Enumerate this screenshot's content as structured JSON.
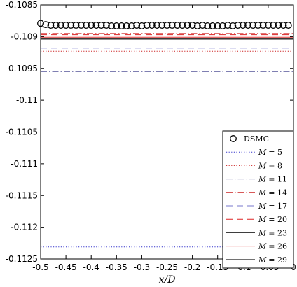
{
  "chart_data": {
    "type": "line",
    "xlabel": "x/D",
    "ylabel": "",
    "xlim": [
      -0.5,
      0
    ],
    "ylim": [
      -0.1125,
      -0.1085
    ],
    "x_ticks": [
      "-0.5",
      "-0.45",
      "-0.4",
      "-0.35",
      "-0.3",
      "-0.25",
      "-0.2",
      "-0.15",
      "-0.1",
      "-0.05",
      "0"
    ],
    "y_ticks": [
      "-0.1085",
      "-0.109",
      "-0.1095",
      "-0.11",
      "-0.1105",
      "-0.111",
      "-0.1115",
      "-0.112",
      "-0.1125"
    ],
    "grid": false,
    "legend_position": "bottom-right",
    "series": [
      {
        "name": "DSMC",
        "style": "markers",
        "marker": "circle-open",
        "color": "#000000",
        "x": [
          -0.5,
          -0.49,
          -0.48,
          -0.47,
          -0.46,
          -0.45,
          -0.44,
          -0.43,
          -0.42,
          -0.41,
          -0.4,
          -0.39,
          -0.38,
          -0.37,
          -0.36,
          -0.35,
          -0.34,
          -0.33,
          -0.32,
          -0.31,
          -0.3,
          -0.29,
          -0.28,
          -0.27,
          -0.26,
          -0.25,
          -0.24,
          -0.23,
          -0.22,
          -0.21,
          -0.2,
          -0.19,
          -0.18,
          -0.17,
          -0.16,
          -0.15,
          -0.14,
          -0.13,
          -0.12,
          -0.11,
          -0.1,
          -0.09,
          -0.08,
          -0.07,
          -0.06,
          -0.05,
          -0.04,
          -0.03,
          -0.02,
          -0.01
        ],
        "y": [
          -0.10879,
          -0.10881,
          -0.10882,
          -0.10882,
          -0.10882,
          -0.10882,
          -0.10882,
          -0.10882,
          -0.10882,
          -0.10882,
          -0.10882,
          -0.10882,
          -0.10882,
          -0.10882,
          -0.10883,
          -0.10883,
          -0.10883,
          -0.10883,
          -0.10883,
          -0.10882,
          -0.10883,
          -0.10882,
          -0.10882,
          -0.10882,
          -0.10882,
          -0.10882,
          -0.10882,
          -0.10882,
          -0.10882,
          -0.10882,
          -0.10882,
          -0.10883,
          -0.10882,
          -0.10883,
          -0.10883,
          -0.10883,
          -0.10883,
          -0.10882,
          -0.10883,
          -0.10882,
          -0.10882,
          -0.10882,
          -0.10882,
          -0.10882,
          -0.10882,
          -0.10882,
          -0.10882,
          -0.10882,
          -0.10882,
          -0.10882
        ]
      },
      {
        "name": "M = 5",
        "label_var": "M",
        "label_val": "= 5",
        "style": "line",
        "dash": "dotted",
        "color": "#3333cc",
        "x": [
          -0.5,
          0
        ],
        "y": [
          -0.11231,
          -0.11231
        ]
      },
      {
        "name": "M = 8",
        "label_var": "M",
        "label_val": "= 8",
        "style": "line",
        "dash": "dotted",
        "color": "#cc2222",
        "x": [
          -0.5,
          0
        ],
        "y": [
          -0.10923,
          -0.10923
        ]
      },
      {
        "name": "M = 11",
        "label_var": "M",
        "label_val": "= 11",
        "style": "line",
        "dash": "dashdot",
        "color": "#555599",
        "x": [
          -0.5,
          0
        ],
        "y": [
          -0.10955,
          -0.10955
        ]
      },
      {
        "name": "M = 14",
        "label_var": "M",
        "label_val": "= 14",
        "style": "line",
        "dash": "dashdot",
        "color": "#cc2222",
        "x": [
          -0.5,
          0
        ],
        "y": [
          -0.10895,
          -0.10895
        ]
      },
      {
        "name": "M = 17",
        "label_var": "M",
        "label_val": "= 17",
        "style": "line",
        "dash": "dashed",
        "color": "#7777cc",
        "x": [
          -0.5,
          0
        ],
        "y": [
          -0.10918,
          -0.10918
        ]
      },
      {
        "name": "M = 20",
        "label_var": "M",
        "label_val": "= 20",
        "style": "line",
        "dash": "dashed",
        "color": "#dd2222",
        "x": [
          -0.5,
          0
        ],
        "y": [
          -0.10897,
          -0.10897
        ]
      },
      {
        "name": "M = 23",
        "label_var": "M",
        "label_val": "= 23",
        "style": "line",
        "dash": "solid",
        "color": "#222222",
        "x": [
          -0.5,
          0
        ],
        "y": [
          -0.10904,
          -0.10904
        ]
      },
      {
        "name": "M = 26",
        "label_var": "M",
        "label_val": "= 26",
        "style": "line",
        "dash": "solid",
        "color": "#dd3333",
        "x": [
          -0.5,
          0
        ],
        "y": [
          -0.10901,
          -0.10901
        ]
      },
      {
        "name": "M = 29",
        "label_var": "M",
        "label_val": "= 29",
        "style": "line",
        "dash": "solid",
        "color": "#444444",
        "x": [
          -0.5,
          0
        ],
        "y": [
          -0.10903,
          -0.10903
        ]
      }
    ]
  }
}
